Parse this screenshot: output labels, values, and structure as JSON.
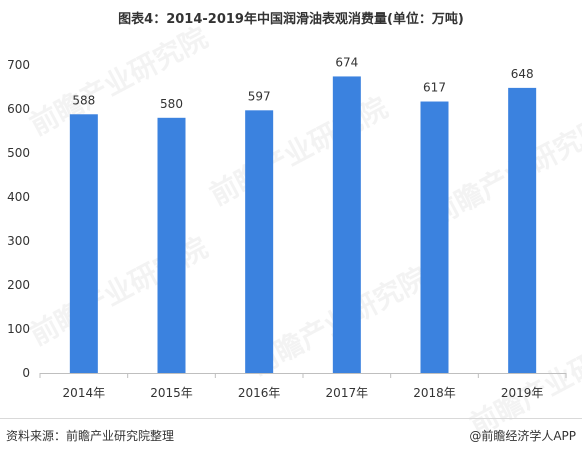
{
  "title": "图表4：2014-2019年中国润滑油表观消费量(单位：万吨)",
  "footer": {
    "source": "资料来源：前瞻产业研究院整理",
    "brand": "@前瞻经济学人APP"
  },
  "watermark": {
    "text": "前瞻产业研究院"
  },
  "colors": {
    "bar": "#3b82df",
    "axis": "#bfbfbf",
    "text": "#333333"
  },
  "chart_data": {
    "type": "bar",
    "title": "图表4：2014-2019年中国润滑油表观消费量(单位：万吨)",
    "categories": [
      "2014年",
      "2015年",
      "2016年",
      "2017年",
      "2018年",
      "2019年"
    ],
    "values": [
      588,
      580,
      597,
      674,
      617,
      648
    ],
    "ylim": [
      0,
      700
    ],
    "yticks": [
      0,
      100,
      200,
      300,
      400,
      500,
      600,
      700
    ],
    "grid": false,
    "legend": "none"
  }
}
